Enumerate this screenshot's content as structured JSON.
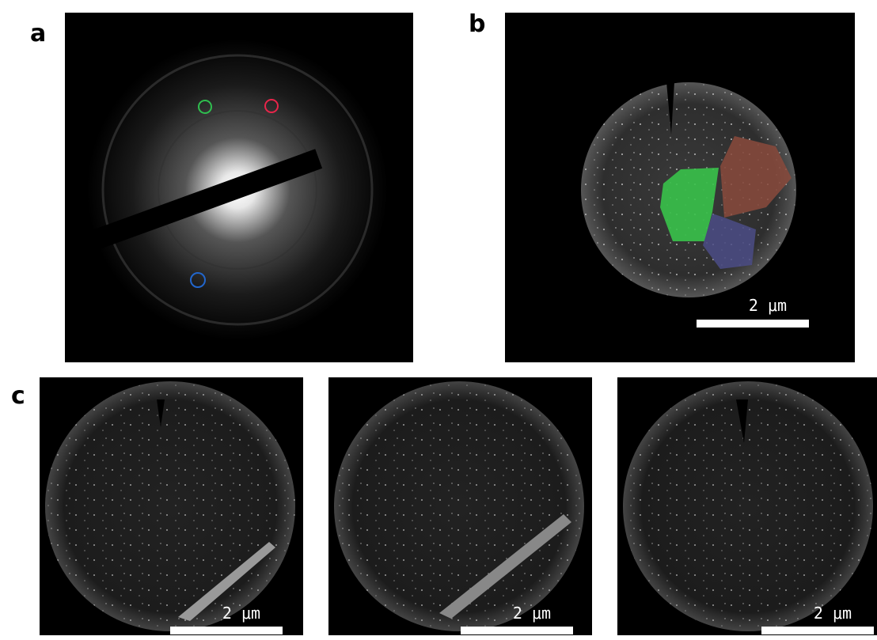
{
  "panel_labels": [
    "a",
    "b",
    "c"
  ],
  "scale_bars": [
    "2 μm",
    "2 μm",
    "2 μm",
    "2 μm"
  ]
}
